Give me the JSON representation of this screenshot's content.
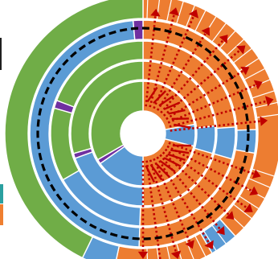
{
  "colors": {
    "green": "#70ad47",
    "blue": "#5b9bd5",
    "orange": "#ed7d31",
    "purple": "#7030a0",
    "red": "#c00000",
    "ring_separator": "#ffffff",
    "boundary": "#000000"
  },
  "chart_data": {
    "type": "sunburst",
    "title": "",
    "legend": "none",
    "start_angle_deg": 0,
    "direction": "clockwise",
    "rings": [
      {
        "name": "",
        "segments": [
          {
            "color": "orange",
            "degrees": 138
          },
          {
            "color": "blue",
            "degrees": 12
          },
          {
            "color": "orange",
            "degrees": 42
          },
          {
            "color": "blue",
            "degrees": 14
          },
          {
            "color": "green",
            "degrees": 154
          }
        ]
      },
      {
        "name": "",
        "segments": [
          {
            "color": "orange",
            "degrees": 88
          },
          {
            "color": "blue",
            "degrees": 12
          },
          {
            "color": "orange",
            "degrees": 82
          },
          {
            "color": "blue",
            "degrees": 173
          },
          {
            "color": "purple",
            "degrees": 5
          }
        ]
      },
      {
        "name": "",
        "segments": [
          {
            "color": "orange",
            "degrees": 86
          },
          {
            "color": "blue",
            "degrees": 20
          },
          {
            "color": "orange",
            "degrees": 76
          },
          {
            "color": "blue",
            "degrees": 58
          },
          {
            "color": "green",
            "degrees": 46
          },
          {
            "color": "purple",
            "degrees": 5
          },
          {
            "color": "green",
            "degrees": 69
          }
        ]
      },
      {
        "name": "",
        "segments": [
          {
            "color": "orange",
            "degrees": 84
          },
          {
            "color": "blue",
            "degrees": 22
          },
          {
            "color": "orange",
            "degrees": 74
          },
          {
            "color": "blue",
            "degrees": 70
          },
          {
            "color": "purple",
            "degrees": 4
          },
          {
            "color": "green",
            "degrees": 106
          }
        ]
      },
      {
        "name": "",
        "segments": [
          {
            "color": "orange",
            "degrees": 80
          },
          {
            "color": "blue",
            "degrees": 24
          },
          {
            "color": "orange",
            "degrees": 76
          },
          {
            "color": "blue",
            "degrees": 55
          },
          {
            "color": "purple",
            "degrees": 5
          },
          {
            "color": "green",
            "degrees": 120
          }
        ]
      }
    ],
    "upper_spokes": 10,
    "lower_spokes": 10,
    "lower_short_spokes": 8,
    "grid": false
  }
}
